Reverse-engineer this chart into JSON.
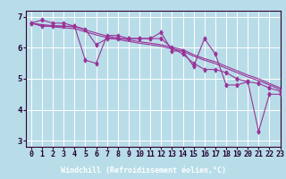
{
  "title": "",
  "xlabel": "Windchill (Refroidissement éolien,°C)",
  "xlim": [
    -0.5,
    23
  ],
  "ylim": [
    2.8,
    7.2
  ],
  "yticks": [
    3,
    4,
    5,
    6,
    7
  ],
  "xticks": [
    0,
    1,
    2,
    3,
    4,
    5,
    6,
    7,
    8,
    9,
    10,
    11,
    12,
    13,
    14,
    15,
    16,
    17,
    18,
    19,
    20,
    21,
    22,
    23
  ],
  "bg_color": "#b8dde8",
  "grid_color": "#ffffff",
  "line_color": "#993399",
  "xlabel_bg": "#220033",
  "xlabel_fg": "#ffffff",
  "data_series": [
    [
      6.8,
      6.9,
      6.8,
      6.8,
      6.7,
      5.6,
      5.5,
      6.4,
      6.4,
      6.3,
      6.3,
      6.3,
      6.5,
      5.9,
      5.9,
      5.4,
      6.3,
      5.8,
      4.8,
      4.8,
      4.9,
      3.3,
      4.5,
      4.5
    ],
    [
      6.8,
      6.7,
      6.7,
      6.7,
      6.7,
      6.6,
      6.1,
      6.3,
      6.3,
      6.3,
      6.3,
      6.3,
      6.3,
      6.0,
      5.8,
      5.5,
      5.3,
      5.3,
      5.2,
      5.0,
      4.9,
      4.85,
      4.7,
      4.6
    ],
    [
      6.8,
      6.75,
      6.72,
      6.7,
      6.68,
      6.58,
      6.48,
      6.38,
      6.32,
      6.26,
      6.2,
      6.15,
      6.1,
      6.02,
      5.94,
      5.78,
      5.65,
      5.55,
      5.4,
      5.26,
      5.12,
      5.0,
      4.85,
      4.7
    ],
    [
      6.8,
      6.73,
      6.68,
      6.65,
      6.62,
      6.52,
      6.42,
      6.33,
      6.27,
      6.21,
      6.15,
      6.1,
      6.05,
      5.97,
      5.89,
      5.73,
      5.6,
      5.49,
      5.34,
      5.2,
      5.06,
      4.94,
      4.8,
      4.65
    ]
  ],
  "marker_size": 2.5,
  "tick_fontsize": 6.0,
  "xlabel_fontsize": 6.0
}
